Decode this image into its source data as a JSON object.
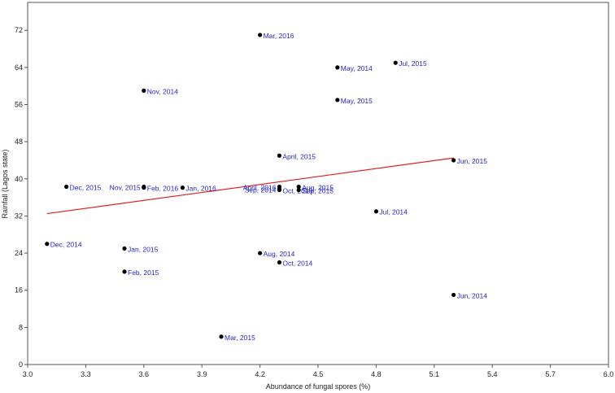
{
  "chart_data": {
    "type": "scatter",
    "xlabel": "Abundance of fungal spores (%)",
    "ylabel": "Rainfall (Lagos state)",
    "xlim": [
      3.0,
      6.0
    ],
    "ylim": [
      0,
      78
    ],
    "xticks": [
      "3.0",
      "3.3",
      "3.6",
      "3.9",
      "4.2",
      "4.5",
      "4.8",
      "5.1",
      "5.4",
      "5.7",
      "6.0"
    ],
    "yticks": [
      "0",
      "8",
      "16",
      "24",
      "32",
      "40",
      "48",
      "56",
      "64",
      "72"
    ],
    "grid": false,
    "points": [
      {
        "x": 4.2,
        "y": 71,
        "label": "Mar, 2016"
      },
      {
        "x": 4.6,
        "y": 64,
        "label": "May, 2014"
      },
      {
        "x": 4.9,
        "y": 65,
        "label": "Jul, 2015"
      },
      {
        "x": 3.6,
        "y": 59,
        "label": "Nov, 2014"
      },
      {
        "x": 4.6,
        "y": 57,
        "label": "May, 2015"
      },
      {
        "x": 4.3,
        "y": 45,
        "label": "April, 2015"
      },
      {
        "x": 5.2,
        "y": 44,
        "label": "Jun, 2015"
      },
      {
        "x": 3.2,
        "y": 38.3,
        "label": "Dec, 2015"
      },
      {
        "x": 3.6,
        "y": 38.3,
        "label": "Nov, 2015"
      },
      {
        "x": 3.6,
        "y": 38.1,
        "label": "Feb, 2016"
      },
      {
        "x": 3.8,
        "y": 38.1,
        "label": "Jan, 2016"
      },
      {
        "x": 4.3,
        "y": 38.3,
        "label": "April, 2016"
      },
      {
        "x": 4.4,
        "y": 38.3,
        "label": "Aug, 2015"
      },
      {
        "x": 4.3,
        "y": 37.8,
        "label": "Sep, 2014"
      },
      {
        "x": 4.3,
        "y": 37.6,
        "label": "Oct, 2015"
      },
      {
        "x": 4.4,
        "y": 37.6,
        "label": "Sep, 2015"
      },
      {
        "x": 4.8,
        "y": 33,
        "label": "Jul, 2014"
      },
      {
        "x": 3.1,
        "y": 26,
        "label": "Dec, 2014"
      },
      {
        "x": 3.5,
        "y": 25,
        "label": "Jan, 2015"
      },
      {
        "x": 4.2,
        "y": 24,
        "label": "Aug, 2014"
      },
      {
        "x": 4.3,
        "y": 22,
        "label": "Oct, 2014"
      },
      {
        "x": 3.5,
        "y": 20,
        "label": "Feb, 2015"
      },
      {
        "x": 5.2,
        "y": 15,
        "label": "Jun, 2014"
      },
      {
        "x": 4.0,
        "y": 6,
        "label": "Mar, 2015"
      }
    ],
    "trendline": {
      "x": [
        3.1,
        5.2
      ],
      "y": [
        32.5,
        44.5
      ]
    },
    "colors": {
      "points": "#000000",
      "labels": "#1f1fd0",
      "trendline": "#e02020",
      "axes": "#555555"
    }
  }
}
